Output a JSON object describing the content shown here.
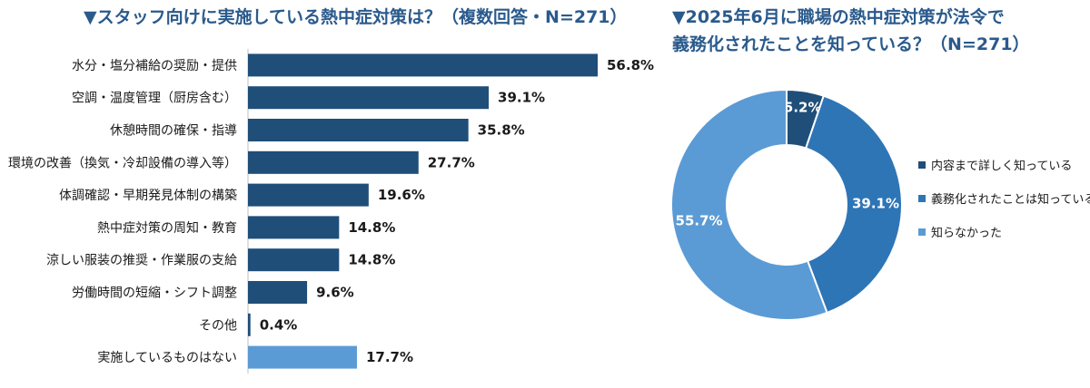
{
  "chart_data": [
    {
      "type": "bar",
      "orientation": "horizontal",
      "title": "▼スタッフ向けに実施している熱中症対策は？（複数回答・N=271）",
      "categories": [
        "水分・塩分補給の奨励・提供",
        "空調・温度管理（厨房含む）",
        "休憩時間の確保・指導",
        "環境の改善（換気・冷却設備の導入等）",
        "体調確認・早期発見体制の構築",
        "熱中症対策の周知・教育",
        "涼しい服装の推奨・作業服の支給",
        "労働時間の短縮・シフト調整",
        "その他",
        "実施しているものはない"
      ],
      "values": [
        56.8,
        39.1,
        35.8,
        27.7,
        19.6,
        14.8,
        14.8,
        9.6,
        0.4,
        17.7
      ],
      "value_labels": [
        "56.8%",
        "39.1%",
        "35.8%",
        "27.7%",
        "19.6%",
        "14.8%",
        "14.8%",
        "9.6%",
        "0.4%",
        "17.7%"
      ],
      "unit": "%",
      "xlim": [
        0,
        60
      ],
      "grid": false,
      "colors": {
        "default": "#1f4e79",
        "last": "#5b9bd5",
        "axis": "#bfbfbf"
      }
    },
    {
      "type": "pie",
      "variant": "donut",
      "title_lines": [
        "▼2025年6月に職場の熱中症対策が法令で",
        "義務化されたことを知っている？（N=271）"
      ],
      "labels": [
        "内容まで詳しく知っている",
        "義務化されたことは知っている",
        "知らなかった"
      ],
      "values": [
        5.2,
        39.1,
        55.7
      ],
      "value_labels": [
        "5.2%",
        "39.1%",
        "55.7%"
      ],
      "colors": [
        "#1f4e79",
        "#2e75b6",
        "#5b9bd5"
      ],
      "legend_position": "right"
    }
  ]
}
